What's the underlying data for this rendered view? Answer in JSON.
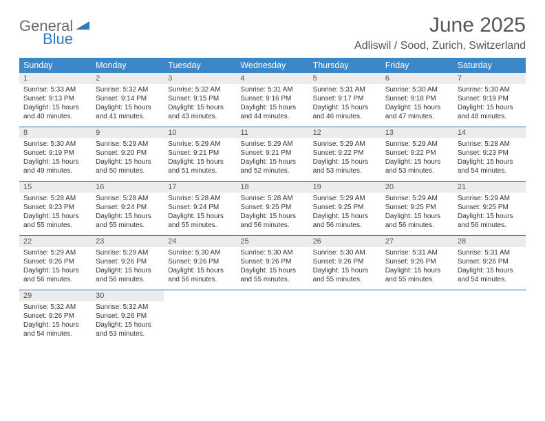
{
  "logo": {
    "word1": "General",
    "word2": "Blue",
    "triangle_color": "#2f78bf"
  },
  "title": "June 2025",
  "location": "Adliswil / Sood, Zurich, Switzerland",
  "colors": {
    "header_bg": "#3b87c8",
    "header_text": "#ffffff",
    "daynum_bg": "#ececec",
    "row_border": "#2f6aa6",
    "text": "#333333",
    "title_text": "#555555"
  },
  "typography": {
    "title_fontsize": 30,
    "location_fontsize": 16,
    "weekday_fontsize": 12.5,
    "daynum_fontsize": 11,
    "cell_fontsize": 10
  },
  "weekdays": [
    "Sunday",
    "Monday",
    "Tuesday",
    "Wednesday",
    "Thursday",
    "Friday",
    "Saturday"
  ],
  "weeks": [
    [
      {
        "n": "1",
        "sunrise": "5:33 AM",
        "sunset": "9:13 PM",
        "daylight": "15 hours and 40 minutes."
      },
      {
        "n": "2",
        "sunrise": "5:32 AM",
        "sunset": "9:14 PM",
        "daylight": "15 hours and 41 minutes."
      },
      {
        "n": "3",
        "sunrise": "5:32 AM",
        "sunset": "9:15 PM",
        "daylight": "15 hours and 43 minutes."
      },
      {
        "n": "4",
        "sunrise": "5:31 AM",
        "sunset": "9:16 PM",
        "daylight": "15 hours and 44 minutes."
      },
      {
        "n": "5",
        "sunrise": "5:31 AM",
        "sunset": "9:17 PM",
        "daylight": "15 hours and 46 minutes."
      },
      {
        "n": "6",
        "sunrise": "5:30 AM",
        "sunset": "9:18 PM",
        "daylight": "15 hours and 47 minutes."
      },
      {
        "n": "7",
        "sunrise": "5:30 AM",
        "sunset": "9:19 PM",
        "daylight": "15 hours and 48 minutes."
      }
    ],
    [
      {
        "n": "8",
        "sunrise": "5:30 AM",
        "sunset": "9:19 PM",
        "daylight": "15 hours and 49 minutes."
      },
      {
        "n": "9",
        "sunrise": "5:29 AM",
        "sunset": "9:20 PM",
        "daylight": "15 hours and 50 minutes."
      },
      {
        "n": "10",
        "sunrise": "5:29 AM",
        "sunset": "9:21 PM",
        "daylight": "15 hours and 51 minutes."
      },
      {
        "n": "11",
        "sunrise": "5:29 AM",
        "sunset": "9:21 PM",
        "daylight": "15 hours and 52 minutes."
      },
      {
        "n": "12",
        "sunrise": "5:29 AM",
        "sunset": "9:22 PM",
        "daylight": "15 hours and 53 minutes."
      },
      {
        "n": "13",
        "sunrise": "5:29 AM",
        "sunset": "9:22 PM",
        "daylight": "15 hours and 53 minutes."
      },
      {
        "n": "14",
        "sunrise": "5:28 AM",
        "sunset": "9:23 PM",
        "daylight": "15 hours and 54 minutes."
      }
    ],
    [
      {
        "n": "15",
        "sunrise": "5:28 AM",
        "sunset": "9:23 PM",
        "daylight": "15 hours and 55 minutes."
      },
      {
        "n": "16",
        "sunrise": "5:28 AM",
        "sunset": "9:24 PM",
        "daylight": "15 hours and 55 minutes."
      },
      {
        "n": "17",
        "sunrise": "5:28 AM",
        "sunset": "9:24 PM",
        "daylight": "15 hours and 55 minutes."
      },
      {
        "n": "18",
        "sunrise": "5:28 AM",
        "sunset": "9:25 PM",
        "daylight": "15 hours and 56 minutes."
      },
      {
        "n": "19",
        "sunrise": "5:29 AM",
        "sunset": "9:25 PM",
        "daylight": "15 hours and 56 minutes."
      },
      {
        "n": "20",
        "sunrise": "5:29 AM",
        "sunset": "9:25 PM",
        "daylight": "15 hours and 56 minutes."
      },
      {
        "n": "21",
        "sunrise": "5:29 AM",
        "sunset": "9:25 PM",
        "daylight": "15 hours and 56 minutes."
      }
    ],
    [
      {
        "n": "22",
        "sunrise": "5:29 AM",
        "sunset": "9:26 PM",
        "daylight": "15 hours and 56 minutes."
      },
      {
        "n": "23",
        "sunrise": "5:29 AM",
        "sunset": "9:26 PM",
        "daylight": "15 hours and 56 minutes."
      },
      {
        "n": "24",
        "sunrise": "5:30 AM",
        "sunset": "9:26 PM",
        "daylight": "15 hours and 56 minutes."
      },
      {
        "n": "25",
        "sunrise": "5:30 AM",
        "sunset": "9:26 PM",
        "daylight": "15 hours and 55 minutes."
      },
      {
        "n": "26",
        "sunrise": "5:30 AM",
        "sunset": "9:26 PM",
        "daylight": "15 hours and 55 minutes."
      },
      {
        "n": "27",
        "sunrise": "5:31 AM",
        "sunset": "9:26 PM",
        "daylight": "15 hours and 55 minutes."
      },
      {
        "n": "28",
        "sunrise": "5:31 AM",
        "sunset": "9:26 PM",
        "daylight": "15 hours and 54 minutes."
      }
    ],
    [
      {
        "n": "29",
        "sunrise": "5:32 AM",
        "sunset": "9:26 PM",
        "daylight": "15 hours and 54 minutes."
      },
      {
        "n": "30",
        "sunrise": "5:32 AM",
        "sunset": "9:26 PM",
        "daylight": "15 hours and 53 minutes."
      },
      null,
      null,
      null,
      null,
      null
    ]
  ],
  "labels": {
    "sunrise": "Sunrise:",
    "sunset": "Sunset:",
    "daylight": "Daylight:"
  }
}
